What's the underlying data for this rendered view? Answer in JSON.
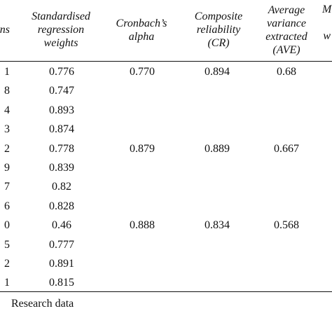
{
  "table": {
    "headers": {
      "items": "ns",
      "std_weights": "Standardised\nregression\nweights",
      "cronbach": "Cronbach’s\nalpha",
      "composite": "Composite\nreliability\n(CR)",
      "ave": "Average\nvariance\nextracted\n(AVE)",
      "msv": "M\n\nw"
    },
    "rows": [
      {
        "item": "1",
        "weight": "0.776",
        "alpha": "0.770",
        "cr": "0.894",
        "ave": "0.68"
      },
      {
        "item": "8",
        "weight": "0.747",
        "alpha": "",
        "cr": "",
        "ave": ""
      },
      {
        "item": "4",
        "weight": "0.893",
        "alpha": "",
        "cr": "",
        "ave": ""
      },
      {
        "item": "3",
        "weight": "0.874",
        "alpha": "",
        "cr": "",
        "ave": ""
      },
      {
        "item": "2",
        "weight": "0.778",
        "alpha": "0.879",
        "cr": "0.889",
        "ave": "0.667"
      },
      {
        "item": "9",
        "weight": "0.839",
        "alpha": "",
        "cr": "",
        "ave": ""
      },
      {
        "item": "7",
        "weight": "0.82",
        "alpha": "",
        "cr": "",
        "ave": ""
      },
      {
        "item": "6",
        "weight": "0.828",
        "alpha": "",
        "cr": "",
        "ave": ""
      },
      {
        "item": "0",
        "weight": "0.46",
        "alpha": "0.888",
        "cr": "0.834",
        "ave": "0.568"
      },
      {
        "item": "5",
        "weight": "0.777",
        "alpha": "",
        "cr": "",
        "ave": ""
      },
      {
        "item": "2",
        "weight": "0.891",
        "alpha": "",
        "cr": "",
        "ave": ""
      },
      {
        "item": "1",
        "weight": "0.815",
        "alpha": "",
        "cr": "",
        "ave": ""
      }
    ]
  },
  "source_note": "Research data"
}
